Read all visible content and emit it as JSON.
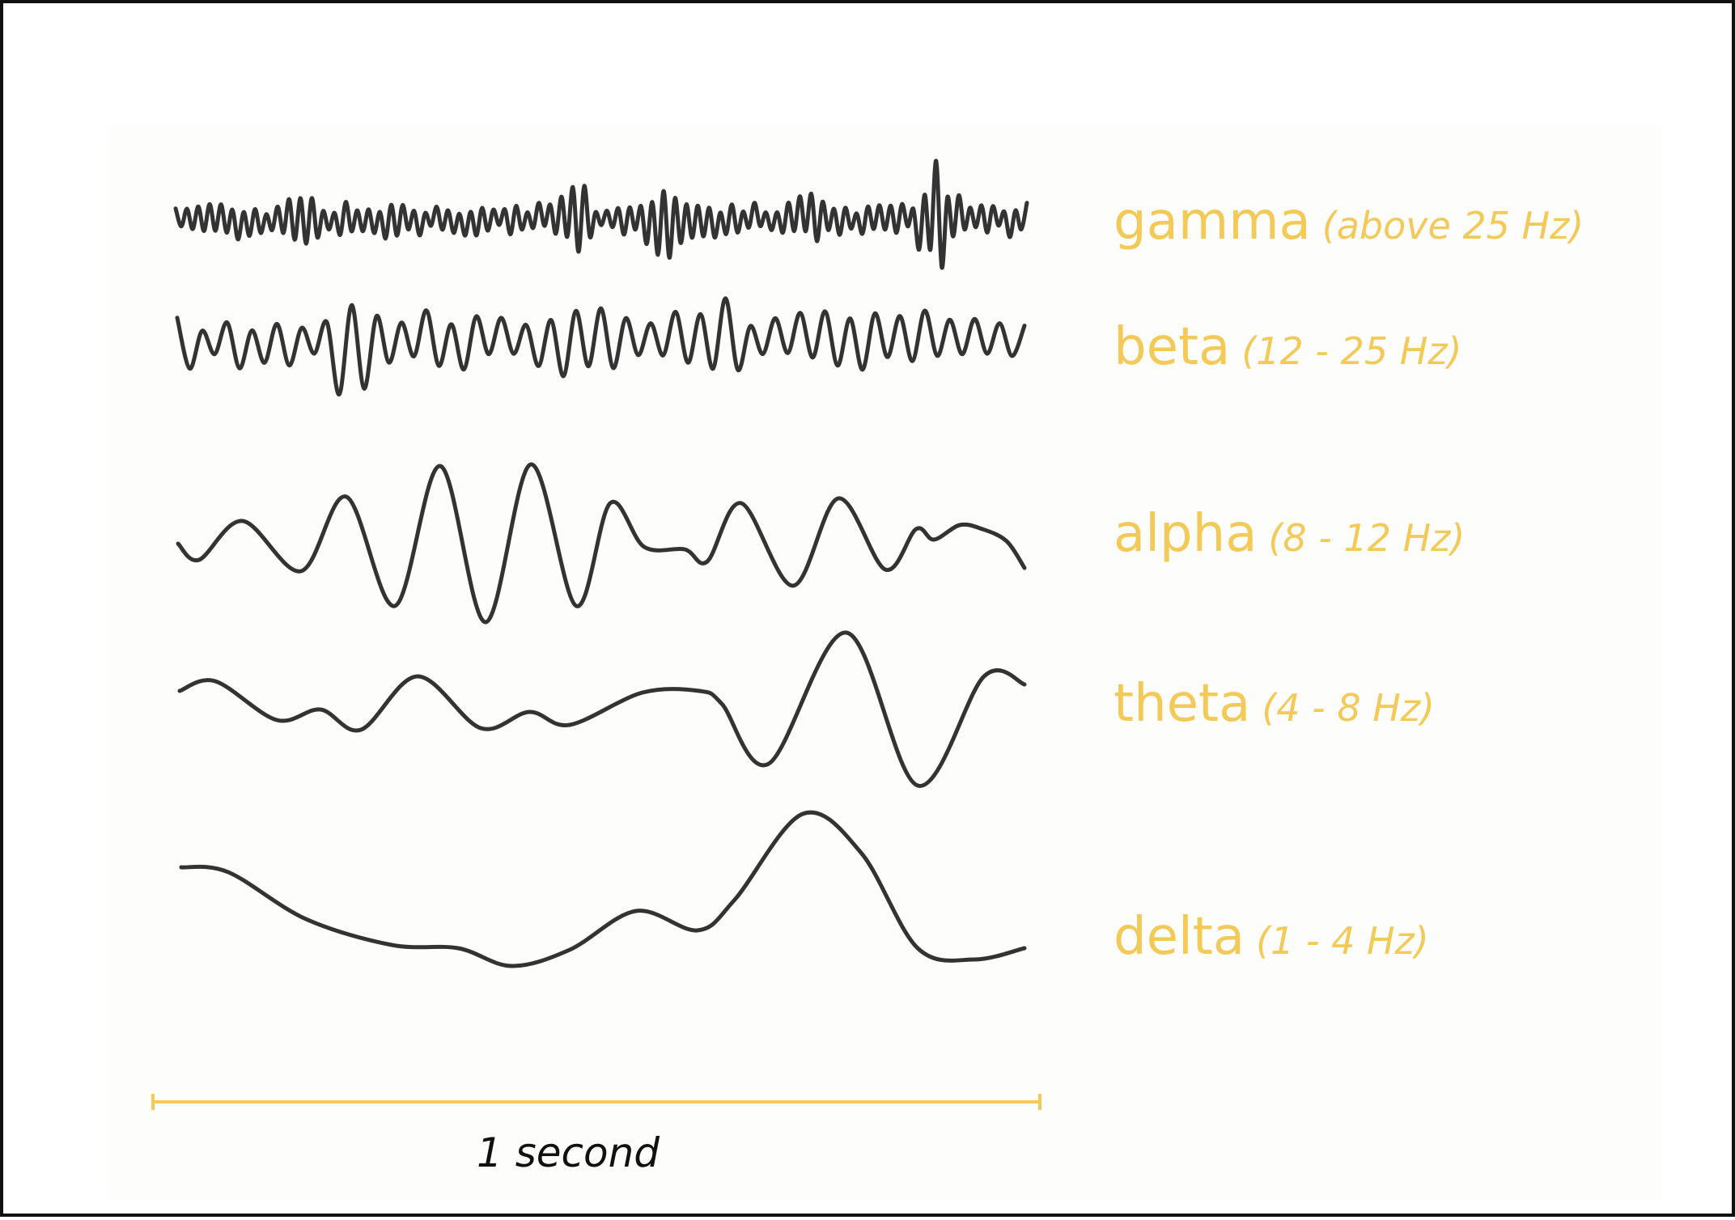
{
  "waves": [
    {
      "id": "gamma",
      "name": "gamma",
      "range": "(above 25 Hz)"
    },
    {
      "id": "beta",
      "name": "beta",
      "range": "(12 - 25 Hz)"
    },
    {
      "id": "alpha",
      "name": "alpha",
      "range": "(8 - 12 Hz)"
    },
    {
      "id": "theta",
      "name": "theta",
      "range": "(4 - 8 Hz)"
    },
    {
      "id": "delta",
      "name": "delta",
      "range": "(1 - 4 Hz)"
    }
  ],
  "scale": {
    "label": "1 second"
  },
  "colors": {
    "label": "#f3c957",
    "scale_bar": "#f3c957",
    "trace": "#333333",
    "border": "#111111"
  }
}
